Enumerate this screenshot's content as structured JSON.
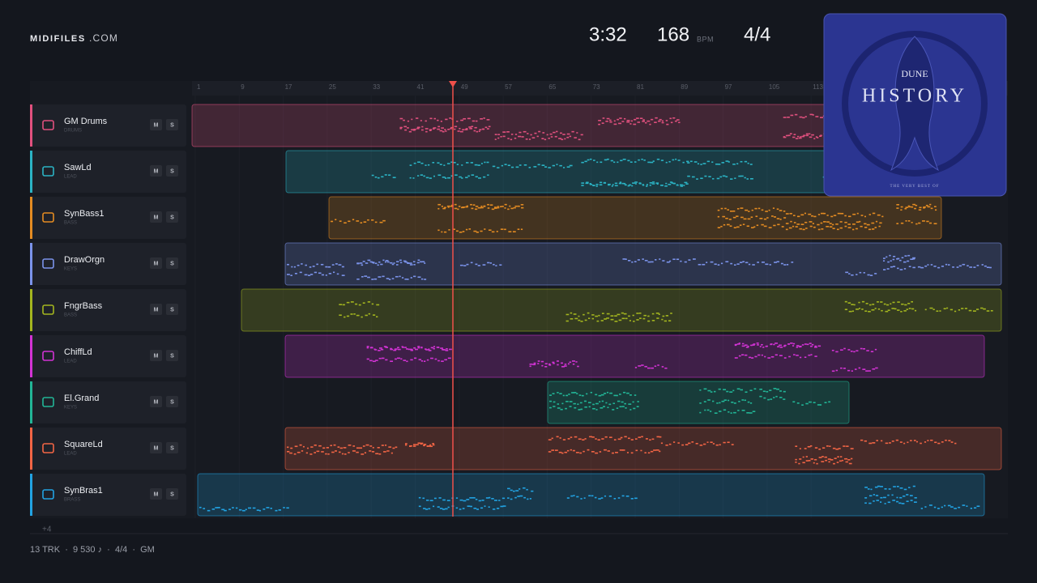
{
  "header": {
    "brand": "MIDIFILES",
    "brand_suffix": ".COM",
    "time": "3:32",
    "tempo": "168",
    "tempo_unit": "BPM",
    "meter": "4/4"
  },
  "album": {
    "artist": "DUNE",
    "title": "HISTORY",
    "subtitle": "THE VERY BEST OF"
  },
  "ruler": [
    1,
    9,
    17,
    25,
    33,
    41,
    49,
    57,
    65,
    73,
    81,
    89,
    97,
    105,
    113
  ],
  "tracks": [
    {
      "name": "GM Drums",
      "type": "DRUMS",
      "mute": "M",
      "solo": "S"
    },
    {
      "name": "SawLd",
      "type": "LEAD",
      "mute": "M",
      "solo": "S"
    },
    {
      "name": "SynBass1",
      "type": "BASS",
      "mute": "M",
      "solo": "S"
    },
    {
      "name": "DrawOrgn",
      "type": "KEYS",
      "mute": "M",
      "solo": "S"
    },
    {
      "name": "FngrBass",
      "type": "BASS",
      "mute": "M",
      "solo": "S"
    },
    {
      "name": "ChiffLd",
      "type": "LEAD",
      "mute": "M",
      "solo": "S"
    },
    {
      "name": "El.Grand",
      "type": "KEYS",
      "mute": "M",
      "solo": "S"
    },
    {
      "name": "SquareLd",
      "type": "LEAD",
      "mute": "M",
      "solo": "S"
    },
    {
      "name": "SynBras1",
      "type": "BRASS",
      "mute": "M",
      "solo": "S"
    }
  ],
  "more": "+4",
  "footer": "13 TRK  ·  9 530 ♪  ·  4/4  ·  GM"
}
